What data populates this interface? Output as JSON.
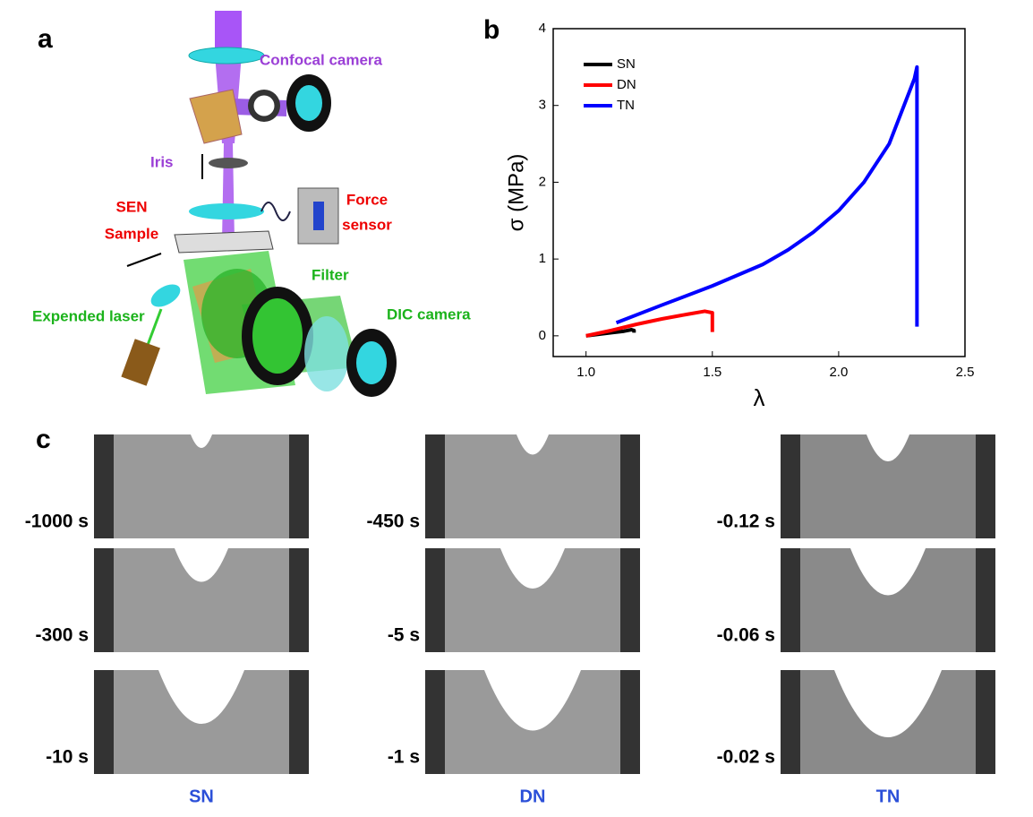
{
  "panel_a": {
    "label": "a",
    "confocal": "Confocal camera",
    "iris": "Iris",
    "sample": [
      "SEN",
      "Sample"
    ],
    "force": [
      "Force",
      "sensor"
    ],
    "filter": "Filter",
    "laser": "Expended laser",
    "dic": "DIC camera"
  },
  "chart_data": {
    "type": "line",
    "label": "b",
    "x_label": "λ",
    "y_label": "σ (MPa)",
    "xlim": [
      0.87,
      2.5
    ],
    "ylim": [
      -0.27,
      4
    ],
    "xticks": [
      {
        "value": 1,
        "label": "1.0"
      },
      {
        "value": 1.5,
        "label": "1.5"
      },
      {
        "value": 2,
        "label": "2.0"
      },
      {
        "value": 2.5,
        "label": "2.5"
      }
    ],
    "yticks": [
      0,
      1,
      2,
      3,
      4
    ],
    "legend": "upper-left",
    "series": [
      {
        "name": "SN",
        "color": "#000000",
        "x": [
          1.0,
          1.05,
          1.1,
          1.15,
          1.18,
          1.19,
          1.19
        ],
        "values": [
          0,
          0.02,
          0.04,
          0.06,
          0.08,
          0.07,
          0.04
        ]
      },
      {
        "name": "DN",
        "color": "#ff0000",
        "x": [
          1.0,
          1.1,
          1.2,
          1.3,
          1.4,
          1.47,
          1.5,
          1.5
        ],
        "values": [
          0,
          0.07,
          0.15,
          0.22,
          0.28,
          0.32,
          0.3,
          0.05
        ]
      },
      {
        "name": "TN",
        "color": "#0000ff",
        "x": [
          1.12,
          1.3,
          1.5,
          1.7,
          1.8,
          1.9,
          2.0,
          2.1,
          2.2,
          2.3,
          2.31,
          2.31
        ],
        "values": [
          0.17,
          0.4,
          0.65,
          0.93,
          1.12,
          1.35,
          1.63,
          2.0,
          2.5,
          3.35,
          3.5,
          0.12
        ]
      }
    ]
  },
  "panel_c": {
    "label": "c",
    "columns": [
      {
        "name": "SN",
        "times": [
          "-1000 s",
          "-300 s",
          "-10 s"
        ]
      },
      {
        "name": "DN",
        "times": [
          "-450 s",
          "-5 s",
          "-1 s"
        ]
      },
      {
        "name": "TN",
        "times": [
          "-0.12 s",
          "-0.06 s",
          "-0.02 s"
        ]
      }
    ]
  }
}
